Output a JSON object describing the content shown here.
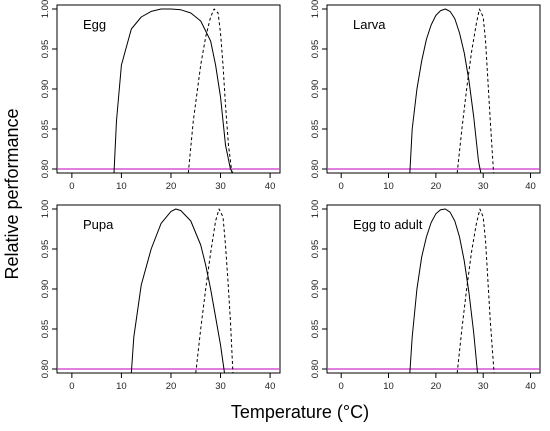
{
  "figure": {
    "xlabel": "Temperature (°C)",
    "ylabel": "Relative performance"
  },
  "chart_data": [
    {
      "type": "line",
      "title": "Egg",
      "xlim": [
        -3,
        42
      ],
      "ylim": [
        0.795,
        1.005
      ],
      "xticks": [
        "0",
        "10",
        "20",
        "30",
        "40"
      ],
      "yticks": [
        "0.80",
        "0.85",
        "0.90",
        "0.95",
        "1.00"
      ],
      "reference_line": {
        "y": 0.8,
        "color": "#cc33cc"
      },
      "series": [
        {
          "style": "solid",
          "x": [
            8.5,
            9,
            10,
            12,
            14,
            16,
            18,
            20,
            22,
            24,
            26,
            28,
            29,
            30,
            31,
            32,
            32.5
          ],
          "y": [
            0.795,
            0.86,
            0.93,
            0.975,
            0.99,
            0.997,
            1.0,
            1.0,
            0.999,
            0.995,
            0.985,
            0.96,
            0.93,
            0.89,
            0.83,
            0.8,
            0.795
          ]
        },
        {
          "style": "dashed",
          "x": [
            23.5,
            24.5,
            26,
            27,
            28,
            28.7,
            29.5,
            30,
            30.5,
            31,
            31.6,
            32.3
          ],
          "y": [
            0.795,
            0.86,
            0.93,
            0.965,
            0.99,
            1.0,
            0.995,
            0.97,
            0.93,
            0.88,
            0.83,
            0.795
          ]
        }
      ]
    },
    {
      "type": "line",
      "title": "Larva",
      "xlim": [
        -3,
        42
      ],
      "ylim": [
        0.795,
        1.005
      ],
      "xticks": [
        "0",
        "10",
        "20",
        "30",
        "40"
      ],
      "yticks": [
        "0.80",
        "0.85",
        "0.90",
        "0.95",
        "1.00"
      ],
      "reference_line": {
        "y": 0.8,
        "color": "#cc33cc"
      },
      "series": [
        {
          "style": "solid",
          "x": [
            14.5,
            15,
            16,
            17,
            18,
            19,
            20,
            21,
            22,
            23,
            24,
            25,
            26,
            27,
            28,
            29,
            29.5
          ],
          "y": [
            0.795,
            0.85,
            0.9,
            0.935,
            0.962,
            0.98,
            0.992,
            0.998,
            1.0,
            0.997,
            0.988,
            0.97,
            0.945,
            0.91,
            0.865,
            0.81,
            0.795
          ]
        },
        {
          "style": "dashed",
          "x": [
            24.5,
            25.5,
            26.5,
            27.5,
            28.5,
            29.2,
            30,
            30.5,
            31,
            31.5,
            32.2
          ],
          "y": [
            0.795,
            0.85,
            0.9,
            0.945,
            0.98,
            1.0,
            0.99,
            0.96,
            0.91,
            0.86,
            0.795
          ]
        }
      ]
    },
    {
      "type": "line",
      "title": "Pupa",
      "xlim": [
        -3,
        42
      ],
      "ylim": [
        0.795,
        1.005
      ],
      "xticks": [
        "0",
        "10",
        "20",
        "30",
        "40"
      ],
      "yticks": [
        "0.80",
        "0.85",
        "0.90",
        "0.95",
        "1.00"
      ],
      "reference_line": {
        "y": 0.8,
        "color": "#cc33cc"
      },
      "series": [
        {
          "style": "solid",
          "x": [
            12,
            12.5,
            14,
            16,
            18,
            20,
            21,
            22,
            24,
            26,
            27,
            28,
            29,
            30,
            30.8
          ],
          "y": [
            0.795,
            0.84,
            0.905,
            0.95,
            0.982,
            0.997,
            1.0,
            0.998,
            0.985,
            0.955,
            0.93,
            0.9,
            0.865,
            0.83,
            0.795
          ]
        },
        {
          "style": "dashed",
          "x": [
            25,
            26,
            27,
            28,
            29,
            29.7,
            30.5,
            31,
            31.5,
            32,
            32.5
          ],
          "y": [
            0.795,
            0.85,
            0.9,
            0.945,
            0.985,
            1.0,
            0.99,
            0.955,
            0.91,
            0.86,
            0.795
          ]
        }
      ]
    },
    {
      "type": "line",
      "title": "Egg to adult",
      "xlim": [
        -3,
        42
      ],
      "ylim": [
        0.795,
        1.005
      ],
      "xticks": [
        "0",
        "10",
        "20",
        "30",
        "40"
      ],
      "yticks": [
        "0.80",
        "0.85",
        "0.90",
        "0.95",
        "1.00"
      ],
      "reference_line": {
        "y": 0.8,
        "color": "#cc33cc"
      },
      "series": [
        {
          "style": "solid",
          "x": [
            14.5,
            15,
            16,
            17,
            18,
            19,
            20,
            21,
            22,
            23,
            24,
            25,
            26,
            27,
            28,
            28.8
          ],
          "y": [
            0.795,
            0.84,
            0.9,
            0.94,
            0.965,
            0.983,
            0.994,
            0.999,
            1.0,
            0.996,
            0.985,
            0.965,
            0.935,
            0.895,
            0.845,
            0.795
          ]
        },
        {
          "style": "dashed",
          "x": [
            24.5,
            25.5,
            26.5,
            27.5,
            28.5,
            29.3,
            30,
            30.5,
            31,
            31.5,
            32.3
          ],
          "y": [
            0.795,
            0.85,
            0.9,
            0.945,
            0.98,
            1.0,
            0.99,
            0.96,
            0.91,
            0.86,
            0.795
          ]
        }
      ]
    }
  ]
}
